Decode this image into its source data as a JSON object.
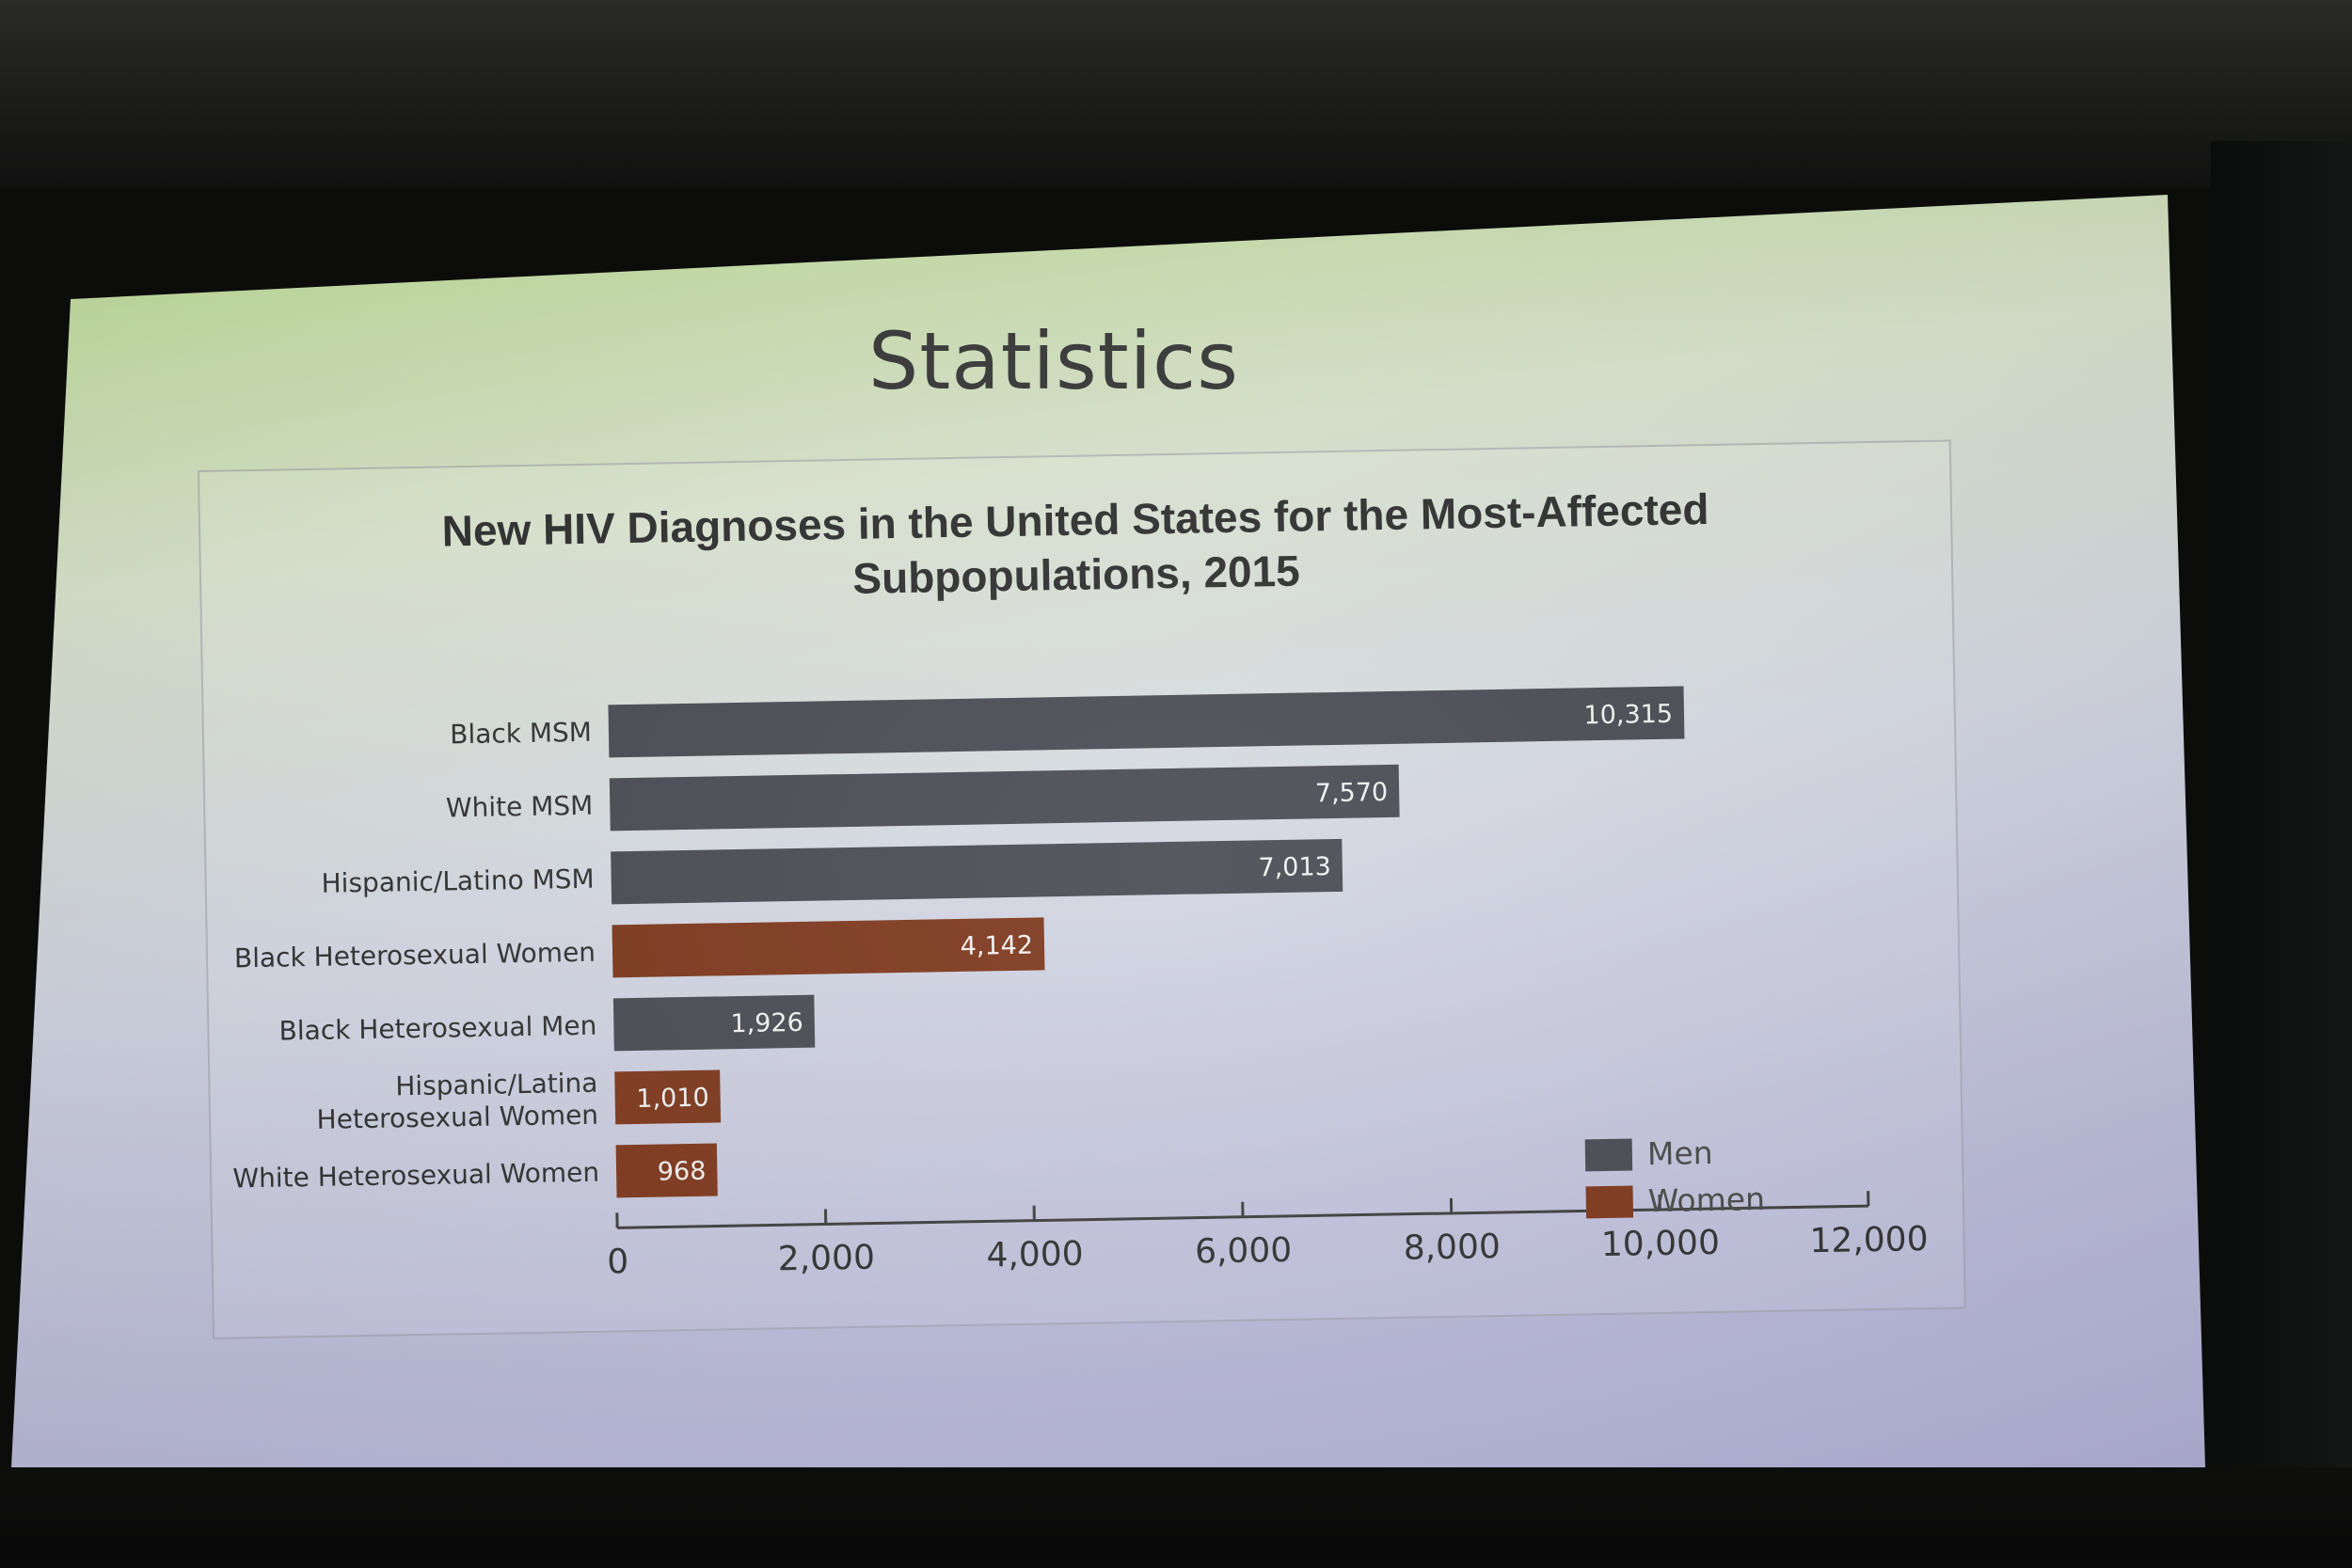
{
  "slide": {
    "title": "Statistics"
  },
  "colors": {
    "men": "#45464e",
    "women": "#7a3317",
    "axis": "#3a3a3a"
  },
  "chart_data": {
    "type": "bar",
    "orientation": "horizontal",
    "title": "New HIV Diagnoses in the United States for the Most-Affected Subpopulations, 2015",
    "title_lines": [
      "New HIV Diagnoses in the United States for the Most-Affected",
      "Subpopulations, 2015"
    ],
    "categories": [
      [
        "Black MSM"
      ],
      [
        "White MSM"
      ],
      [
        "Hispanic/Latino MSM"
      ],
      [
        "Black Heterosexual Women"
      ],
      [
        "Black Heterosexual Men"
      ],
      [
        "Hispanic/Latina",
        "Heterosexual Women"
      ],
      [
        "White Heterosexual Women"
      ]
    ],
    "values": [
      10315,
      7570,
      7013,
      4142,
      1926,
      1010,
      968
    ],
    "value_labels": [
      "10,315",
      "7,570",
      "7,013",
      "4,142",
      "1,926",
      "1,010",
      "968"
    ],
    "groups": [
      "Men",
      "Men",
      "Men",
      "Women",
      "Men",
      "Women",
      "Women"
    ],
    "legend": [
      "Men",
      "Women"
    ],
    "legend_position": "bottom-right",
    "xlim": [
      0,
      12000
    ],
    "xticks": [
      0,
      2000,
      4000,
      6000,
      8000,
      10000,
      12000
    ],
    "xtick_labels": [
      "0",
      "2,000",
      "4,000",
      "6,000",
      "8,000",
      "10,000",
      "12,000"
    ],
    "xlabel": "",
    "ylabel": "",
    "grid": false
  }
}
